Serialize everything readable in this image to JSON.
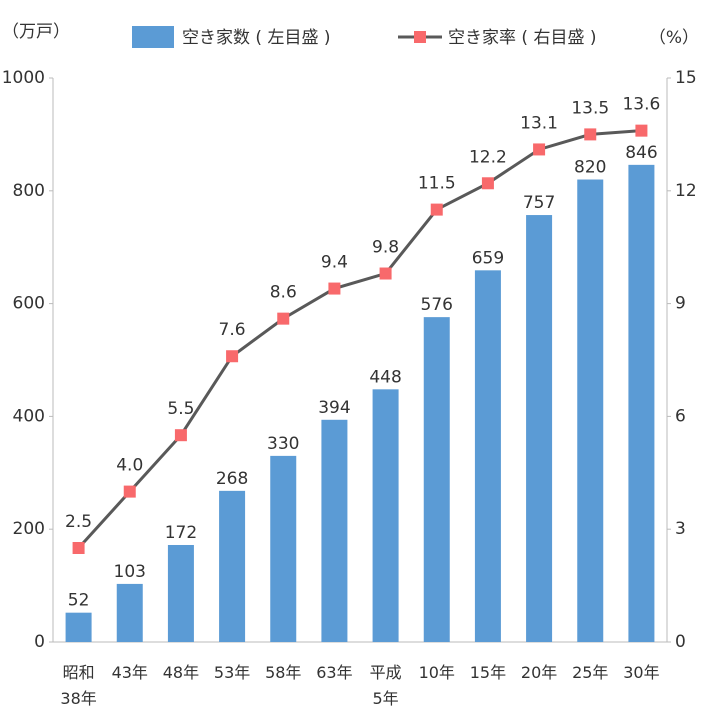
{
  "chart_data": {
    "type": "bar+line",
    "y_unit_label": "（万戸）",
    "y2_unit_label": "（%）",
    "categories": [
      "昭和\n38年",
      "43年",
      "48年",
      "53年",
      "58年",
      "63年",
      "平成\n5年",
      "10年",
      "15年",
      "20年",
      "25年",
      "30年"
    ],
    "series": [
      {
        "name": "空き家数 ( 左目盛 )",
        "type": "bar",
        "color": "#5b9bd5",
        "axis": "y",
        "values": [
          52,
          103,
          172,
          268,
          330,
          394,
          448,
          576,
          659,
          757,
          820,
          846
        ]
      },
      {
        "name": "空き家率 ( 右目盛 )",
        "type": "line",
        "color": "#595959",
        "marker_color": "#f8696b",
        "axis": "y2",
        "values": [
          2.5,
          4.0,
          5.5,
          7.6,
          8.6,
          9.4,
          9.8,
          11.5,
          12.2,
          13.1,
          13.5,
          13.6
        ],
        "value_labels": [
          "2.5",
          "4.0",
          "5.5",
          "7.6",
          "8.6",
          "9.4",
          "9.8",
          "11.5",
          "12.2",
          "13.1",
          "13.5",
          "13.6"
        ]
      }
    ],
    "ylim": [
      0,
      1000
    ],
    "yticks": [
      0,
      200,
      400,
      600,
      800,
      1000
    ],
    "y2lim": [
      0,
      15
    ],
    "y2ticks": [
      0,
      3,
      6,
      9,
      12,
      15
    ]
  }
}
